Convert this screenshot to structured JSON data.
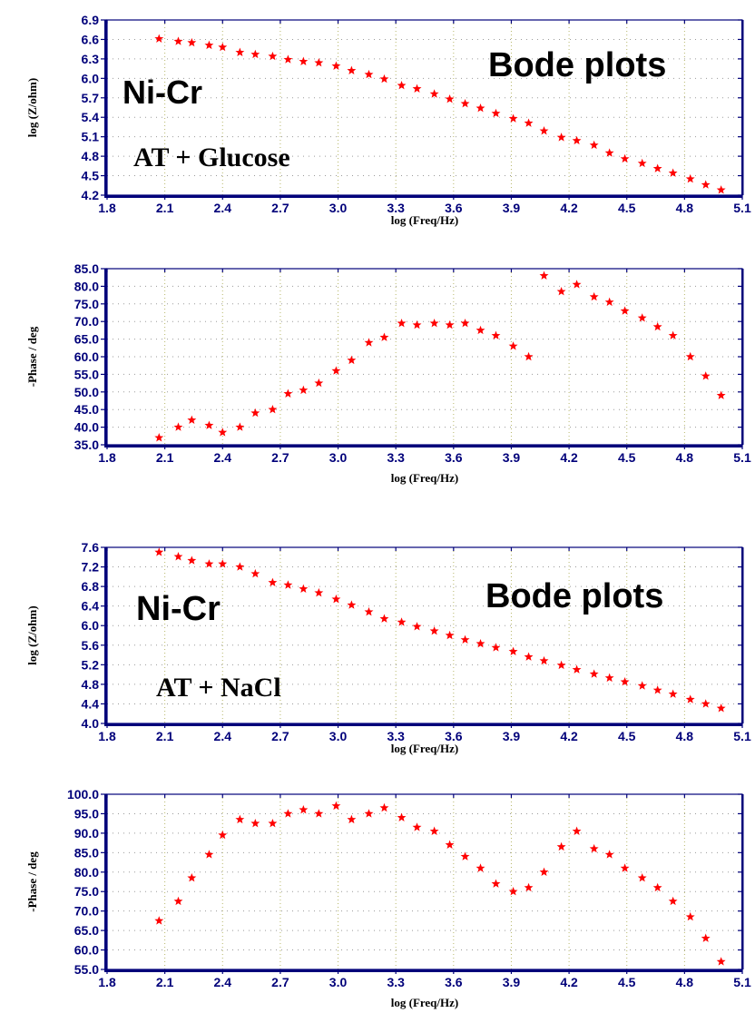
{
  "chart_data": [
    {
      "type": "scatter",
      "title": "",
      "xlabel": "log (Freq/Hz)",
      "ylabel": "log (Z/ohm)",
      "xlim": [
        1.8,
        5.1
      ],
      "ylim": [
        4.2,
        6.9
      ],
      "x_ticks": [
        "1.8",
        "2.1",
        "2.4",
        "2.7",
        "3.0",
        "3.3",
        "3.6",
        "3.9",
        "4.2",
        "4.5",
        "4.8",
        "5.1"
      ],
      "y_ticks": [
        "6.9",
        "6.6",
        "6.3",
        "6.0",
        "5.7",
        "5.4",
        "5.1",
        "4.8",
        "4.5",
        "4.2"
      ],
      "grid": true,
      "annotations": {
        "main": "Ni-Cr",
        "title": "Bode plots",
        "sub": "AT + Glucose"
      },
      "series": [
        {
          "x": [
            2.07,
            2.17,
            2.24,
            2.33,
            2.4,
            2.49,
            2.57,
            2.66,
            2.74,
            2.82,
            2.9,
            2.99,
            3.07,
            3.16,
            3.24,
            3.33,
            3.41,
            3.5,
            3.58,
            3.66,
            3.74,
            3.82,
            3.91,
            3.99,
            4.07,
            4.16,
            4.24,
            4.33,
            4.41,
            4.49,
            4.58,
            4.66,
            4.74,
            4.83,
            4.91,
            4.99
          ],
          "values": [
            6.61,
            6.57,
            6.55,
            6.51,
            6.48,
            6.4,
            6.37,
            6.34,
            6.29,
            6.26,
            6.24,
            6.19,
            6.12,
            6.06,
            5.99,
            5.89,
            5.84,
            5.76,
            5.68,
            5.61,
            5.54,
            5.46,
            5.38,
            5.31,
            5.19,
            5.09,
            5.04,
            4.97,
            4.85,
            4.76,
            4.69,
            4.61,
            4.54,
            4.45,
            4.36,
            4.28
          ]
        }
      ]
    },
    {
      "type": "scatter",
      "title": "",
      "xlabel": "log (Freq/Hz)",
      "ylabel": "-Phase / deg",
      "xlim": [
        1.8,
        5.1
      ],
      "ylim": [
        35.0,
        85.0
      ],
      "x_ticks": [
        "1.8",
        "2.1",
        "2.4",
        "2.7",
        "3.0",
        "3.3",
        "3.6",
        "3.9",
        "4.2",
        "4.5",
        "4.8",
        "5.1"
      ],
      "y_ticks": [
        "85.0",
        "80.0",
        "75.0",
        "70.0",
        "65.0",
        "60.0",
        "55.0",
        "50.0",
        "45.0",
        "40.0",
        "35.0"
      ],
      "grid": true,
      "series": [
        {
          "x": [
            2.07,
            2.17,
            2.24,
            2.33,
            2.4,
            2.49,
            2.57,
            2.66,
            2.74,
            2.82,
            2.9,
            2.99,
            3.07,
            3.16,
            3.24,
            3.33,
            3.41,
            3.5,
            3.58,
            3.66,
            3.74,
            3.82,
            3.91,
            3.99,
            4.07,
            4.16,
            4.24,
            4.33,
            4.41,
            4.49,
            4.58,
            4.66,
            4.74,
            4.83,
            4.91,
            4.99
          ],
          "values": [
            37.0,
            40.0,
            42.0,
            40.5,
            38.5,
            40.0,
            44.0,
            45.0,
            49.5,
            50.5,
            52.5,
            56.0,
            59.0,
            64.0,
            65.5,
            69.5,
            69.0,
            69.5,
            69.0,
            69.5,
            67.5,
            66.0,
            63.0,
            60.0,
            83.0,
            78.5,
            80.5,
            77.0,
            75.5,
            73.0,
            71.0,
            68.5,
            66.0,
            60.0,
            54.5,
            49.0
          ]
        }
      ]
    },
    {
      "type": "scatter",
      "title": "",
      "xlabel": "log (Freq/Hz)",
      "ylabel": "log (Z/ohm)",
      "xlim": [
        1.8,
        5.1
      ],
      "ylim": [
        4.0,
        7.6
      ],
      "x_ticks": [
        "1.8",
        "2.1",
        "2.4",
        "2.7",
        "3.0",
        "3.3",
        "3.6",
        "3.9",
        "4.2",
        "4.5",
        "4.8",
        "5.1"
      ],
      "y_ticks": [
        "7.6",
        "7.2",
        "6.8",
        "6.4",
        "6.0",
        "5.6",
        "5.2",
        "4.8",
        "4.4",
        "4.0"
      ],
      "grid": true,
      "annotations": {
        "main": "Ni-Cr",
        "title": "Bode plots",
        "sub": "AT + NaCl"
      },
      "series": [
        {
          "x": [
            2.07,
            2.17,
            2.24,
            2.33,
            2.4,
            2.49,
            2.57,
            2.66,
            2.74,
            2.82,
            2.9,
            2.99,
            3.07,
            3.16,
            3.24,
            3.33,
            3.41,
            3.5,
            3.58,
            3.66,
            3.74,
            3.82,
            3.91,
            3.99,
            4.07,
            4.16,
            4.24,
            4.33,
            4.41,
            4.49,
            4.58,
            4.66,
            4.74,
            4.83,
            4.91,
            4.99
          ],
          "values": [
            7.5,
            7.41,
            7.33,
            7.26,
            7.26,
            7.2,
            7.06,
            6.88,
            6.83,
            6.75,
            6.67,
            6.54,
            6.42,
            6.28,
            6.14,
            6.07,
            5.98,
            5.89,
            5.8,
            5.71,
            5.63,
            5.55,
            5.47,
            5.36,
            5.28,
            5.19,
            5.1,
            5.01,
            4.93,
            4.85,
            4.77,
            4.68,
            4.6,
            4.49,
            4.4,
            4.31
          ]
        }
      ]
    },
    {
      "type": "scatter",
      "title": "",
      "xlabel": "log (Freq/Hz)",
      "ylabel": "-Phase / deg",
      "xlim": [
        1.8,
        5.1
      ],
      "ylim": [
        55.0,
        100.0
      ],
      "x_ticks": [
        "1.8",
        "2.1",
        "2.4",
        "2.7",
        "3.0",
        "3.3",
        "3.6",
        "3.9",
        "4.2",
        "4.5",
        "4.8",
        "5.1"
      ],
      "y_ticks": [
        "100.0",
        "95.0",
        "90.0",
        "85.0",
        "80.0",
        "75.0",
        "70.0",
        "65.0",
        "60.0",
        "55.0"
      ],
      "grid": true,
      "series": [
        {
          "x": [
            2.07,
            2.17,
            2.24,
            2.33,
            2.4,
            2.49,
            2.57,
            2.66,
            2.74,
            2.82,
            2.9,
            2.99,
            3.07,
            3.16,
            3.24,
            3.33,
            3.41,
            3.5,
            3.58,
            3.66,
            3.74,
            3.82,
            3.91,
            3.99,
            4.07,
            4.16,
            4.24,
            4.33,
            4.41,
            4.49,
            4.58,
            4.66,
            4.74,
            4.83,
            4.91,
            4.99
          ],
          "values": [
            67.5,
            72.5,
            78.5,
            84.5,
            89.5,
            93.5,
            92.5,
            92.5,
            95.0,
            96.0,
            95.0,
            97.0,
            93.5,
            95.0,
            96.5,
            94.0,
            91.5,
            90.5,
            87.0,
            84.0,
            81.0,
            77.0,
            75.0,
            76.0,
            80.0,
            86.5,
            90.5,
            86.0,
            84.5,
            81.0,
            78.5,
            76.0,
            72.5,
            68.5,
            63.0,
            57.0
          ]
        }
      ]
    }
  ]
}
